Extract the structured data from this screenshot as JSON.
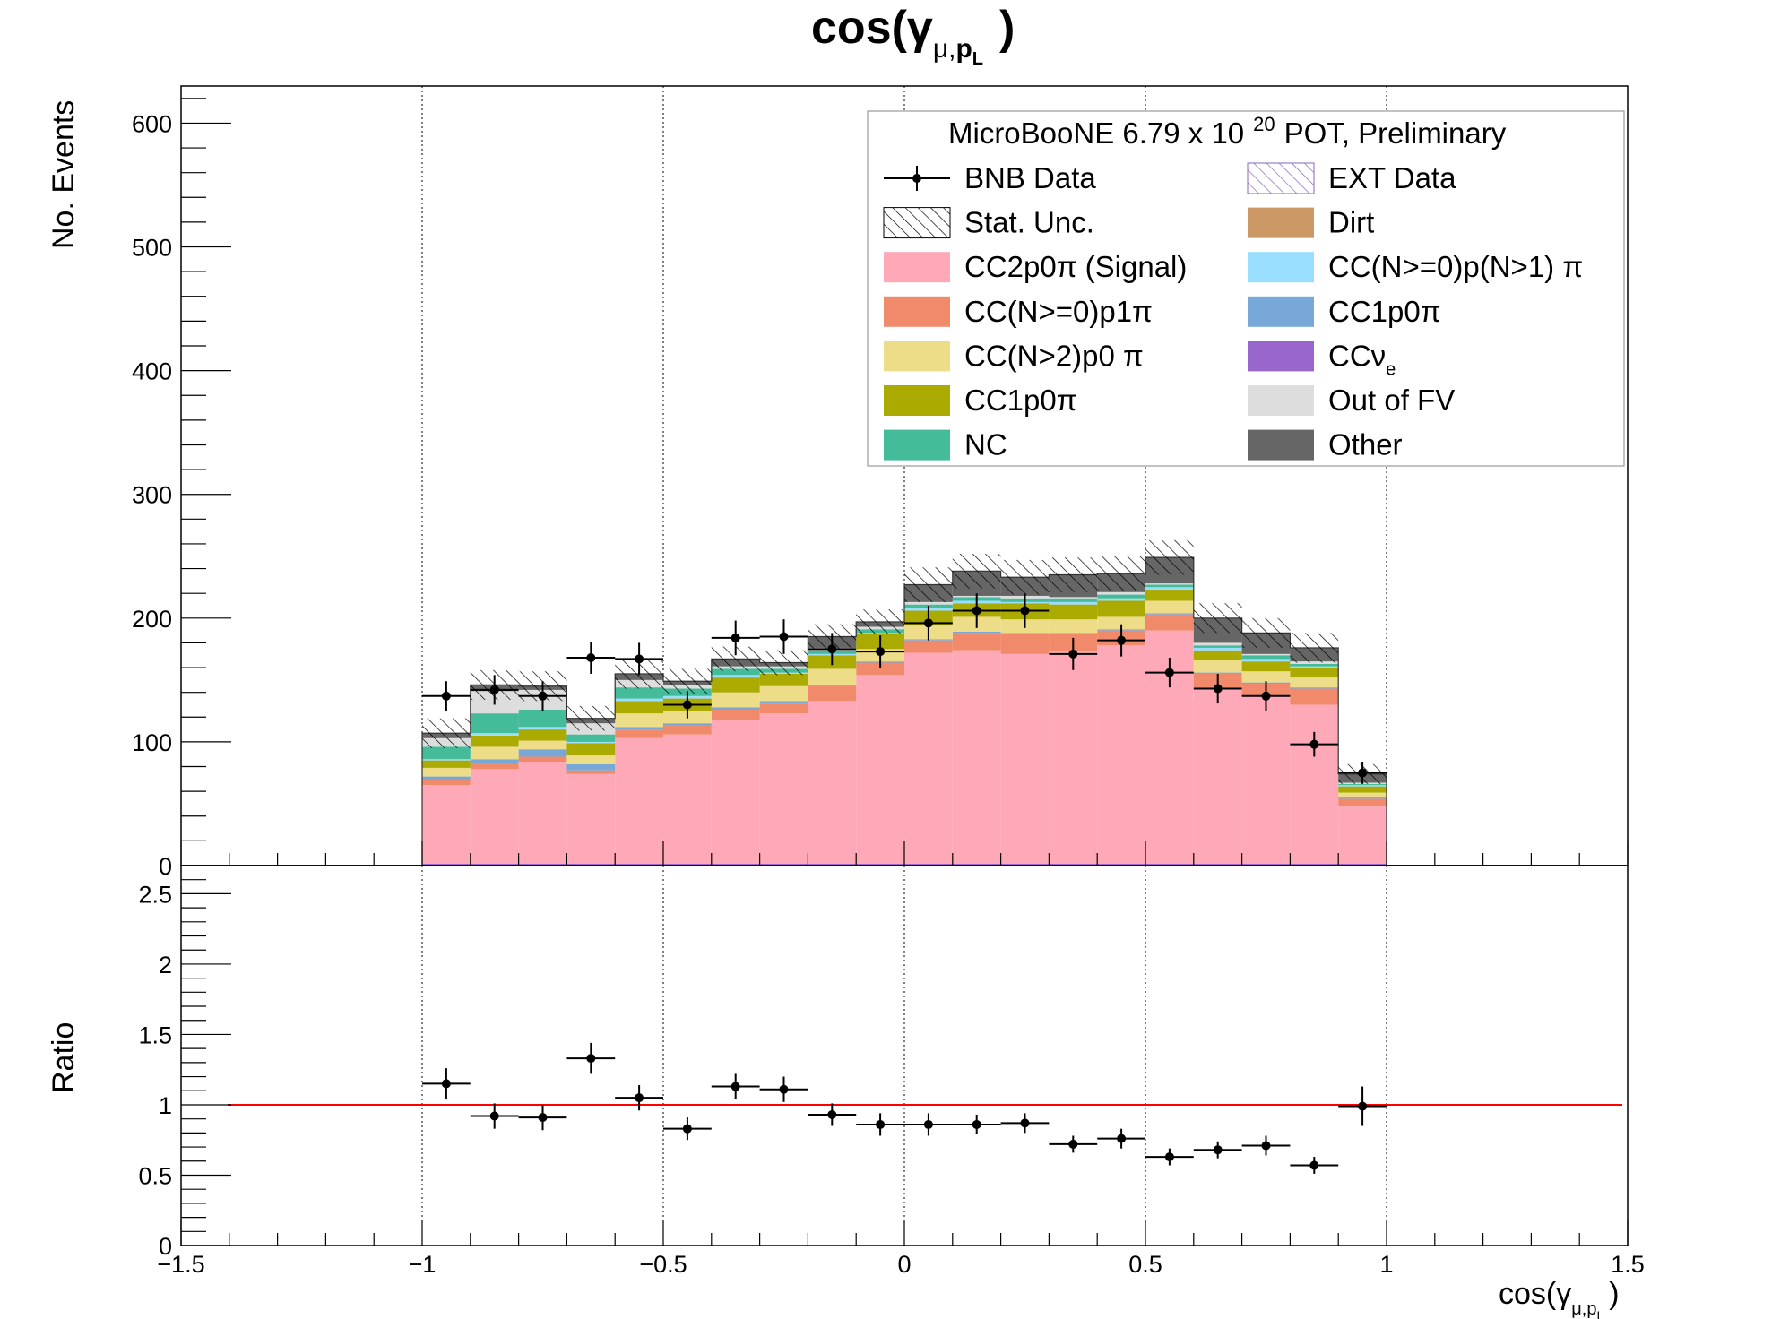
{
  "chart_data": [
    {
      "type": "bar",
      "stacked": true,
      "title": "cos(γμ,pL)",
      "title_parts": {
        "base": "cos(γ",
        "sub1": "μ,",
        "sub2": "p",
        "sub3": "L",
        "close": ")"
      },
      "ylabel": "No. Events",
      "xlim": [
        -1.5,
        1.5
      ],
      "ylim": [
        0,
        630
      ],
      "grid": "vertical dashed at x = -1, -0.5, 0, 0.5, 1",
      "x_ticks": [
        "−1.5",
        "−1",
        "−0.5",
        "0",
        "0.5",
        "1",
        "1.5"
      ],
      "y_ticks": [
        "0",
        "100",
        "200",
        "300",
        "400",
        "500",
        "600"
      ],
      "bin_edges": [
        -1.0,
        -0.9,
        -0.8,
        -0.7,
        -0.6,
        -0.5,
        -0.4,
        -0.3,
        -0.2,
        -0.1,
        0.0,
        0.1,
        0.2,
        0.3,
        0.4,
        0.5,
        0.6,
        0.7,
        0.8,
        0.9,
        1.0
      ],
      "series": [
        {
          "name": "CC2p0π (Signal)",
          "color": "#ffa8b8",
          "values": [
            65,
            78,
            84,
            74,
            103,
            106,
            118,
            123,
            133,
            154,
            172,
            174,
            171,
            173,
            178,
            190,
            143,
            137,
            130,
            48
          ]
        },
        {
          "name": "CC(N>=0)p1π",
          "color": "#f08a6a",
          "values": [
            4,
            5,
            4,
            3,
            7,
            7,
            8,
            8,
            12,
            10,
            10,
            14,
            16,
            14,
            12,
            13,
            12,
            10,
            13,
            6
          ]
        },
        {
          "name": "CC1p0π (blue)",
          "color": "#78a8d8",
          "values": [
            3,
            3,
            6,
            5,
            2,
            2,
            2,
            2,
            1,
            1,
            1,
            1,
            1,
            1,
            1,
            1,
            1,
            1,
            1,
            1
          ]
        },
        {
          "name": "CC(N>2)p0π",
          "color": "#eedd88",
          "values": [
            7,
            10,
            7,
            7,
            11,
            10,
            12,
            12,
            13,
            10,
            11,
            12,
            11,
            11,
            10,
            10,
            10,
            9,
            8,
            4
          ]
        },
        {
          "name": "CC1p0π (olive)",
          "color": "#aaaa00",
          "values": [
            6,
            9,
            9,
            10,
            10,
            10,
            12,
            10,
            11,
            12,
            12,
            11,
            13,
            12,
            13,
            9,
            8,
            8,
            8,
            5
          ]
        },
        {
          "name": "CC(N>=0)p(N>1)π",
          "color": "#99ddff",
          "values": [
            1,
            2,
            2,
            1,
            2,
            2,
            2,
            1,
            1,
            1,
            2,
            2,
            1,
            2,
            2,
            2,
            2,
            2,
            1,
            1
          ]
        },
        {
          "name": "NC",
          "color": "#44bb99",
          "values": [
            10,
            16,
            14,
            6,
            9,
            6,
            5,
            3,
            3,
            3,
            3,
            3,
            3,
            3,
            3,
            2,
            2,
            3,
            2,
            1
          ]
        },
        {
          "name": "Out of FV",
          "color": "#dddddd",
          "values": [
            7,
            18,
            16,
            9,
            6,
            3,
            2,
            2,
            2,
            2,
            2,
            1,
            2,
            1,
            2,
            1,
            2,
            1,
            2,
            1
          ]
        },
        {
          "name": "Other",
          "color": "#666666",
          "values": [
            4,
            5,
            3,
            4,
            5,
            3,
            6,
            3,
            9,
            4,
            14,
            20,
            15,
            18,
            15,
            21,
            20,
            17,
            11,
            7
          ]
        }
      ],
      "stat_unc": [
        12,
        12,
        12,
        10,
        12,
        10,
        10,
        10,
        10,
        10,
        14,
        14,
        14,
        14,
        14,
        14,
        12,
        12,
        12,
        8
      ],
      "data_points": {
        "name": "BNB Data",
        "x": [
          -0.95,
          -0.85,
          -0.75,
          -0.65,
          -0.55,
          -0.45,
          -0.35,
          -0.25,
          -0.15,
          -0.05,
          0.05,
          0.15,
          0.25,
          0.35,
          0.45,
          0.55,
          0.65,
          0.75,
          0.85,
          0.95
        ],
        "y": [
          137,
          142,
          137,
          168,
          167,
          130,
          184,
          185,
          175,
          173,
          196,
          206,
          206,
          171,
          182,
          156,
          143,
          137,
          98,
          75
        ],
        "yerr": [
          12,
          12,
          12,
          13,
          13,
          11,
          14,
          14,
          13,
          13,
          14,
          14,
          14,
          13,
          13,
          12,
          12,
          12,
          10,
          9
        ],
        "xerr": 0.05
      },
      "legend": {
        "header": "MicroBooNE 6.79 x 10",
        "header_exp": "20",
        "header_tail": "POT, Preliminary",
        "placement": "top-right",
        "entries": [
          {
            "label": "BNB Data",
            "kind": "marker",
            "color": "#000000"
          },
          {
            "label": "EXT Data",
            "kind": "hatch-purple",
            "color": "#9966cc"
          },
          {
            "label": "Stat. Unc.",
            "kind": "hatch-black",
            "color": "#000000"
          },
          {
            "label": "Dirt",
            "kind": "fill",
            "color": "#cc9966"
          },
          {
            "label": "CC2p0π (Signal)",
            "kind": "fill",
            "color": "#ffa8b8"
          },
          {
            "label": "CC(N>=0)p(N>1) π",
            "kind": "fill",
            "color": "#99ddff"
          },
          {
            "label": "CC(N>=0)p1π",
            "kind": "fill",
            "color": "#f08a6a"
          },
          {
            "label": "CC1p0π",
            "kind": "fill",
            "color": "#78a8d8"
          },
          {
            "label": "CC(N>2)p0 π",
            "kind": "fill",
            "color": "#eedd88"
          },
          {
            "label": "CCν",
            "label_sub": "e",
            "kind": "fill",
            "color": "#9966cc"
          },
          {
            "label": "CC1p0π",
            "kind": "fill",
            "color": "#aaaa00"
          },
          {
            "label": "Out of FV",
            "kind": "fill",
            "color": "#dddddd"
          },
          {
            "label": "NC",
            "kind": "fill",
            "color": "#44bb99"
          },
          {
            "label": "Other",
            "kind": "fill",
            "color": "#666666"
          }
        ]
      }
    },
    {
      "type": "scatter",
      "ylabel": "Ratio",
      "xlabel_parts": {
        "base": "cos(γ",
        "sub1": "μ,",
        "sub2": "p",
        "sub3": "L",
        "close": ")"
      },
      "xlim": [
        -1.5,
        1.5
      ],
      "ylim": [
        0,
        2.7
      ],
      "reference_line": {
        "y": 1,
        "color": "#ff0000"
      },
      "x_ticks": [
        "−1.5",
        "−1",
        "−0.5",
        "0",
        "0.5",
        "1",
        "1.5"
      ],
      "y_ticks": [
        "0",
        "0.5",
        "1",
        "1.5",
        "2",
        "2.5"
      ],
      "x": [
        -0.95,
        -0.85,
        -0.75,
        -0.65,
        -0.55,
        -0.45,
        -0.35,
        -0.25,
        -0.15,
        -0.05,
        0.05,
        0.15,
        0.25,
        0.35,
        0.45,
        0.55,
        0.65,
        0.75,
        0.85,
        0.95
      ],
      "y": [
        1.15,
        0.92,
        0.91,
        1.33,
        1.05,
        0.83,
        1.13,
        1.11,
        0.93,
        0.86,
        0.86,
        0.86,
        0.87,
        0.72,
        0.76,
        0.63,
        0.68,
        0.71,
        0.57,
        0.99
      ],
      "yerr": [
        0.11,
        0.09,
        0.09,
        0.11,
        0.09,
        0.08,
        0.09,
        0.09,
        0.08,
        0.08,
        0.08,
        0.07,
        0.07,
        0.06,
        0.07,
        0.06,
        0.06,
        0.07,
        0.06,
        0.14
      ]
    }
  ]
}
